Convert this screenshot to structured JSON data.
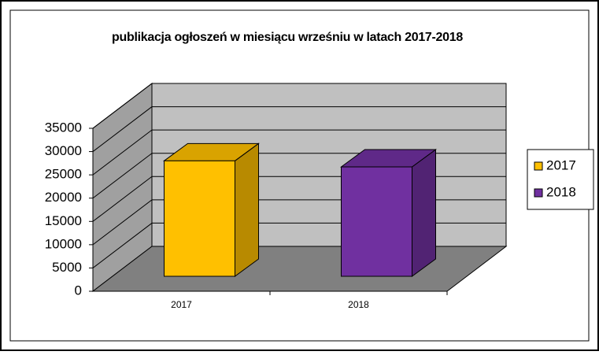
{
  "chart_data": {
    "type": "bar3d",
    "title": "publikacja ogłoszeń w miesiącu wrześniu w latach 2017-2018",
    "categories": [
      "2017",
      "2018"
    ],
    "series": [
      {
        "name": "2017",
        "color": "#ffc000",
        "values": [
          24800,
          null
        ]
      },
      {
        "name": "2018",
        "color": "#7030a0",
        "values": [
          null,
          23500
        ]
      }
    ],
    "ylim": [
      0,
      35000
    ],
    "yticks": [
      0,
      5000,
      10000,
      15000,
      20000,
      25000,
      30000,
      35000
    ],
    "grid": true,
    "legend": "right"
  }
}
